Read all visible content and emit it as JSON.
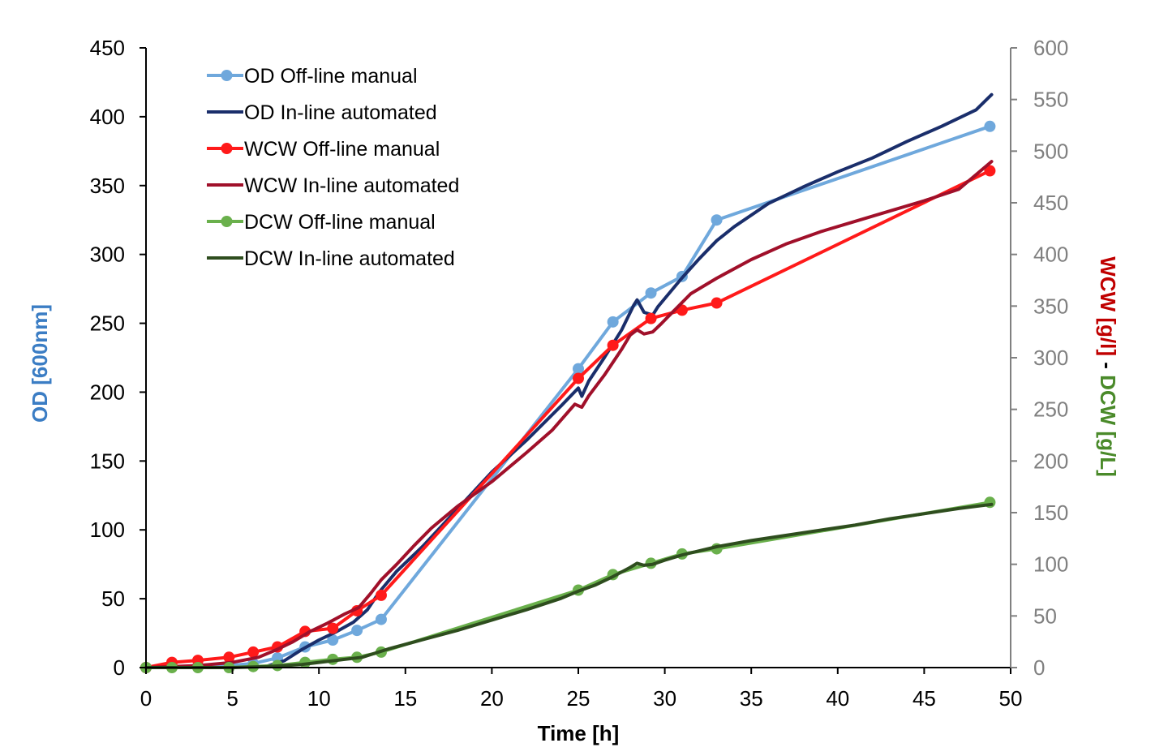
{
  "chart_data": {
    "type": "line",
    "xlabel": "Time [h]",
    "ylabel_left": "OD [600nm]",
    "ylabel_right": {
      "part1": "WCW [g/l]",
      "separator": " - ",
      "part2": "DCW [g/L]"
    },
    "xlim": [
      0,
      50
    ],
    "ylim_left": [
      0,
      450
    ],
    "ylim_right": [
      0,
      600
    ],
    "x_ticks": [
      0,
      5,
      10,
      15,
      20,
      25,
      30,
      35,
      40,
      45,
      50
    ],
    "y_left_ticks": [
      0,
      50,
      100,
      150,
      200,
      250,
      300,
      350,
      400,
      450
    ],
    "y_right_ticks": [
      0,
      50,
      100,
      150,
      200,
      250,
      300,
      350,
      400,
      450,
      500,
      550,
      600
    ],
    "grid": false,
    "legend_position": "top-left",
    "colors": {
      "axis_left": "#000000",
      "axis_right": "#808080",
      "ylabel_left": "#3b7dc4",
      "ylabel_right_part1": "#c00000",
      "ylabel_right_part2": "#4a8a2a"
    },
    "series": [
      {
        "name": "OD Off-line manual",
        "axis": "left",
        "color": "#6fa8dc",
        "markers": true,
        "width": 4,
        "points": [
          [
            0,
            0
          ],
          [
            1.5,
            0.5
          ],
          [
            3,
            1
          ],
          [
            4.8,
            1.5
          ],
          [
            6.2,
            3
          ],
          [
            7.6,
            7
          ],
          [
            9.2,
            15
          ],
          [
            10.8,
            20
          ],
          [
            12.2,
            27
          ],
          [
            13.6,
            35
          ],
          [
            25,
            217
          ],
          [
            27,
            251
          ],
          [
            29.2,
            272
          ],
          [
            31,
            284
          ],
          [
            33,
            325
          ],
          [
            48.8,
            393
          ]
        ]
      },
      {
        "name": "OD In-line automated",
        "axis": "left",
        "color": "#1a2e6b",
        "markers": false,
        "width": 4,
        "points": [
          [
            6,
            0
          ],
          [
            7,
            1
          ],
          [
            8,
            5
          ],
          [
            9,
            13
          ],
          [
            10,
            20
          ],
          [
            11,
            26
          ],
          [
            12,
            33
          ],
          [
            12.8,
            42
          ],
          [
            13.5,
            55
          ],
          [
            14.5,
            70
          ],
          [
            16,
            88
          ],
          [
            18,
            115
          ],
          [
            20,
            142
          ],
          [
            22,
            165
          ],
          [
            24,
            190
          ],
          [
            25,
            203
          ],
          [
            25.2,
            197
          ],
          [
            25.6,
            208
          ],
          [
            26.5,
            225
          ],
          [
            27.5,
            245
          ],
          [
            28.2,
            263
          ],
          [
            28.4,
            267
          ],
          [
            28.8,
            258
          ],
          [
            29.3,
            256
          ],
          [
            29.6,
            262
          ],
          [
            30,
            268
          ],
          [
            31,
            283
          ],
          [
            32,
            297
          ],
          [
            33,
            310
          ],
          [
            34,
            320
          ],
          [
            36,
            337
          ],
          [
            38,
            349
          ],
          [
            40,
            360
          ],
          [
            42,
            370
          ],
          [
            44,
            382
          ],
          [
            46,
            393
          ],
          [
            48,
            405
          ],
          [
            48.9,
            416
          ]
        ]
      },
      {
        "name": "WCW Off-line manual",
        "axis": "right",
        "color": "#ff1a1a",
        "markers": true,
        "width": 4,
        "points": [
          [
            0,
            0
          ],
          [
            1.5,
            5
          ],
          [
            3,
            7
          ],
          [
            4.8,
            10
          ],
          [
            6.2,
            15
          ],
          [
            7.6,
            20
          ],
          [
            9.2,
            35
          ],
          [
            10.8,
            38
          ],
          [
            12.2,
            55
          ],
          [
            13.6,
            70
          ],
          [
            25,
            280
          ],
          [
            27,
            312
          ],
          [
            29.2,
            338
          ],
          [
            31,
            346
          ],
          [
            33,
            353
          ],
          [
            48.8,
            481
          ]
        ]
      },
      {
        "name": "WCW In-line automated",
        "axis": "right",
        "color": "#a0102a",
        "markers": false,
        "width": 4,
        "points": [
          [
            0,
            0
          ],
          [
            3,
            2
          ],
          [
            5,
            5
          ],
          [
            6.5,
            10
          ],
          [
            7.5,
            17
          ],
          [
            8.5,
            25
          ],
          [
            9.5,
            35
          ],
          [
            10.5,
            43
          ],
          [
            11.5,
            52
          ],
          [
            12.3,
            58
          ],
          [
            13,
            72
          ],
          [
            13.6,
            85
          ],
          [
            14.5,
            100
          ],
          [
            15.5,
            118
          ],
          [
            16.5,
            135
          ],
          [
            18,
            156
          ],
          [
            20,
            180
          ],
          [
            22,
            208
          ],
          [
            23.5,
            230
          ],
          [
            24.8,
            255
          ],
          [
            25.2,
            252
          ],
          [
            25.6,
            263
          ],
          [
            26.5,
            283
          ],
          [
            27.5,
            308
          ],
          [
            28,
            322
          ],
          [
            28.4,
            327
          ],
          [
            28.8,
            323
          ],
          [
            29.3,
            325
          ],
          [
            29.8,
            333
          ],
          [
            30.5,
            345
          ],
          [
            31.5,
            362
          ],
          [
            33,
            377
          ],
          [
            35,
            395
          ],
          [
            37,
            410
          ],
          [
            39,
            422
          ],
          [
            41,
            432
          ],
          [
            43,
            442
          ],
          [
            45,
            452
          ],
          [
            47,
            463
          ],
          [
            48.9,
            490
          ]
        ]
      },
      {
        "name": "DCW Off-line manual",
        "axis": "right",
        "color": "#6ab04c",
        "markers": true,
        "width": 4,
        "points": [
          [
            0,
            0
          ],
          [
            1.5,
            0
          ],
          [
            3,
            0
          ],
          [
            4.8,
            0
          ],
          [
            6.2,
            1
          ],
          [
            7.6,
            2
          ],
          [
            9.2,
            5
          ],
          [
            10.8,
            8
          ],
          [
            12.2,
            10
          ],
          [
            13.6,
            15
          ],
          [
            25,
            75
          ],
          [
            27,
            90
          ],
          [
            29.2,
            101
          ],
          [
            31,
            110
          ],
          [
            33,
            115
          ],
          [
            48.8,
            160
          ]
        ]
      },
      {
        "name": "DCW In-line automated",
        "axis": "right",
        "color": "#2e4d1e",
        "markers": false,
        "width": 4,
        "points": [
          [
            0,
            0
          ],
          [
            5,
            0
          ],
          [
            7,
            1
          ],
          [
            9,
            3
          ],
          [
            10.5,
            6
          ],
          [
            12.5,
            10
          ],
          [
            14,
            18
          ],
          [
            16,
            27
          ],
          [
            18,
            36
          ],
          [
            20,
            46
          ],
          [
            22,
            56
          ],
          [
            24,
            67
          ],
          [
            25,
            74
          ],
          [
            26,
            80
          ],
          [
            27,
            88
          ],
          [
            28,
            97
          ],
          [
            28.4,
            101
          ],
          [
            28.8,
            99
          ],
          [
            29.3,
            100
          ],
          [
            30,
            104
          ],
          [
            31,
            109
          ],
          [
            32,
            113
          ],
          [
            33,
            117
          ],
          [
            35,
            123
          ],
          [
            37,
            128
          ],
          [
            39,
            133
          ],
          [
            41,
            138
          ],
          [
            43,
            144
          ],
          [
            45,
            149
          ],
          [
            47,
            154
          ],
          [
            48.9,
            158
          ]
        ]
      }
    ]
  }
}
